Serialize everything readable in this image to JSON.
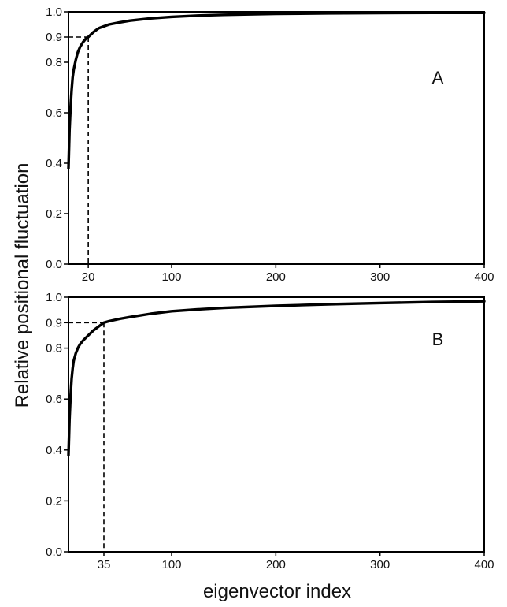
{
  "figure": {
    "ylabel": "Relative positional fluctuation",
    "xlabel": "eigenvector index"
  },
  "chart_data": [
    {
      "type": "line",
      "panel_label": "A",
      "xlim": [
        1,
        400
      ],
      "ylim": [
        0.0,
        1.0
      ],
      "x_ticks": [
        20,
        100,
        200,
        300,
        400
      ],
      "x_tick_labels": [
        "20",
        "100",
        "200",
        "300",
        "400"
      ],
      "y_ticks": [
        0.0,
        0.2,
        0.4,
        0.6,
        0.8,
        0.9,
        1.0
      ],
      "y_tick_labels": [
        "0.0",
        "0.2",
        "0.4",
        "0.6",
        "0.8",
        "0.9",
        "1.0"
      ],
      "grid": false,
      "reference": {
        "x": 20,
        "y": 0.9
      },
      "series": [
        {
          "x": [
            1,
            2,
            3,
            4,
            5,
            6,
            8,
            10,
            12,
            15,
            18,
            20,
            25,
            30,
            40,
            50,
            60,
            80,
            100,
            125,
            150,
            200,
            250,
            300,
            350,
            400
          ],
          "y": [
            0.38,
            0.53,
            0.62,
            0.69,
            0.74,
            0.77,
            0.81,
            0.84,
            0.86,
            0.88,
            0.895,
            0.9,
            0.92,
            0.935,
            0.95,
            0.958,
            0.965,
            0.974,
            0.98,
            0.985,
            0.988,
            0.992,
            0.994,
            0.995,
            0.996,
            0.996
          ]
        }
      ]
    },
    {
      "type": "line",
      "panel_label": "B",
      "xlim": [
        1,
        400
      ],
      "ylim": [
        0.0,
        1.0
      ],
      "x_ticks": [
        35,
        100,
        200,
        300,
        400
      ],
      "x_tick_labels": [
        "35",
        "100",
        "200",
        "300",
        "400"
      ],
      "y_ticks": [
        0.0,
        0.2,
        0.4,
        0.6,
        0.8,
        0.9,
        1.0
      ],
      "y_tick_labels": [
        "0.0",
        "0.2",
        "0.4",
        "0.6",
        "0.8",
        "0.9",
        "1.0"
      ],
      "grid": false,
      "reference": {
        "x": 35,
        "y": 0.9
      },
      "series": [
        {
          "x": [
            1,
            2,
            3,
            4,
            5,
            6,
            8,
            10,
            12,
            15,
            20,
            25,
            30,
            35,
            40,
            50,
            60,
            80,
            100,
            125,
            150,
            200,
            250,
            300,
            350,
            400
          ],
          "y": [
            0.38,
            0.52,
            0.61,
            0.68,
            0.72,
            0.75,
            0.78,
            0.8,
            0.815,
            0.83,
            0.85,
            0.87,
            0.885,
            0.9,
            0.906,
            0.915,
            0.922,
            0.935,
            0.945,
            0.952,
            0.958,
            0.966,
            0.972,
            0.977,
            0.981,
            0.984
          ]
        }
      ]
    }
  ]
}
